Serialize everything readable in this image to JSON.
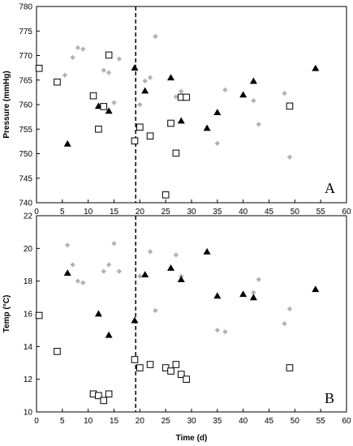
{
  "chart_data": [
    {
      "type": "scatter",
      "panel_label": "A",
      "ylabel": "Pressure (mmHg)",
      "xlabel": "",
      "xlim": [
        0,
        60
      ],
      "ylim": [
        740,
        780
      ],
      "x_ticks": [
        0,
        5,
        10,
        15,
        20,
        25,
        30,
        35,
        40,
        45,
        50,
        55,
        60
      ],
      "y_ticks": [
        740,
        745,
        750,
        755,
        760,
        765,
        770,
        775,
        780
      ],
      "grid": false,
      "vline_x": 19.2,
      "series": [
        {
          "marker": "diamond",
          "color": "#b3b3b3",
          "points": [
            [
              5.5,
              766
            ],
            [
              7,
              769.6
            ],
            [
              8,
              771.6
            ],
            [
              9,
              771.3
            ],
            [
              13,
              767
            ],
            [
              14,
              766.5
            ],
            [
              15,
              760.4
            ],
            [
              16,
              769.3
            ],
            [
              20,
              760
            ],
            [
              21,
              764.8
            ],
            [
              22,
              765.5
            ],
            [
              23,
              773.9
            ],
            [
              27,
              761.6
            ],
            [
              28,
              762.7
            ],
            [
              35,
              752.1
            ],
            [
              36.5,
              763
            ],
            [
              42,
              760.8
            ],
            [
              43,
              756
            ],
            [
              48,
              762.3
            ],
            [
              49,
              749.3
            ]
          ]
        },
        {
          "marker": "triangle",
          "color": "#000000",
          "points": [
            [
              6,
              752
            ],
            [
              12,
              759.7
            ],
            [
              14,
              758.7
            ],
            [
              19,
              767.5
            ],
            [
              21,
              762.8
            ],
            [
              26,
              765.5
            ],
            [
              28,
              756.7
            ],
            [
              33,
              755.2
            ],
            [
              35,
              758.4
            ],
            [
              40,
              762
            ],
            [
              42,
              764.8
            ],
            [
              54,
              767.4
            ]
          ]
        },
        {
          "marker": "square",
          "color": "#000000",
          "points": [
            [
              0.5,
              767.4
            ],
            [
              4,
              764.6
            ],
            [
              11,
              761.8
            ],
            [
              12,
              755
            ],
            [
              13,
              759.6
            ],
            [
              14,
              770.1
            ],
            [
              19,
              752.6
            ],
            [
              20,
              755.4
            ],
            [
              22,
              753.6
            ],
            [
              25,
              741.6
            ],
            [
              26,
              756.2
            ],
            [
              27,
              750.1
            ],
            [
              28,
              761.5
            ],
            [
              29,
              761.5
            ],
            [
              49,
              759.7
            ]
          ]
        }
      ]
    },
    {
      "type": "scatter",
      "panel_label": "B",
      "ylabel": "Temp (°C)",
      "xlabel": "Time (d)",
      "xlim": [
        0,
        60
      ],
      "ylim": [
        10,
        22
      ],
      "x_ticks": [
        0,
        5,
        10,
        15,
        20,
        25,
        30,
        35,
        40,
        45,
        50,
        55,
        60
      ],
      "y_ticks": [
        10,
        12,
        14,
        16,
        18,
        20,
        22
      ],
      "grid": false,
      "vline_x": 19.2,
      "series": [
        {
          "marker": "diamond",
          "color": "#b3b3b3",
          "points": [
            [
              6,
              20.2
            ],
            [
              7,
              19
            ],
            [
              8,
              18
            ],
            [
              9,
              17.9
            ],
            [
              13,
              18.6
            ],
            [
              14,
              19
            ],
            [
              15,
              20.3
            ],
            [
              16,
              18.6
            ],
            [
              20,
              18.3
            ],
            [
              22,
              19.8
            ],
            [
              23,
              16.2
            ],
            [
              27,
              19.6
            ],
            [
              28,
              18.3
            ],
            [
              35,
              15
            ],
            [
              36.5,
              14.9
            ],
            [
              42,
              17.3
            ],
            [
              43,
              18.1
            ],
            [
              48,
              15.4
            ],
            [
              49,
              16.3
            ]
          ]
        },
        {
          "marker": "triangle",
          "color": "#000000",
          "points": [
            [
              6,
              18.5
            ],
            [
              12,
              16
            ],
            [
              14,
              14.7
            ],
            [
              19,
              15.6
            ],
            [
              21,
              18.4
            ],
            [
              26,
              18.8
            ],
            [
              28,
              18.1
            ],
            [
              33,
              19.8
            ],
            [
              35,
              17.1
            ],
            [
              40,
              17.2
            ],
            [
              42,
              17
            ],
            [
              54,
              17.5
            ]
          ]
        },
        {
          "marker": "square",
          "color": "#000000",
          "points": [
            [
              0.5,
              15.9
            ],
            [
              4,
              13.7
            ],
            [
              11,
              11.1
            ],
            [
              12,
              11
            ],
            [
              13,
              10.7
            ],
            [
              14,
              11.1
            ],
            [
              19,
              13.2
            ],
            [
              20,
              12.7
            ],
            [
              22,
              12.9
            ],
            [
              25,
              12.7
            ],
            [
              26,
              12.5
            ],
            [
              27,
              12.9
            ],
            [
              28,
              12.3
            ],
            [
              29,
              12
            ],
            [
              49,
              12.7
            ]
          ]
        }
      ]
    }
  ]
}
